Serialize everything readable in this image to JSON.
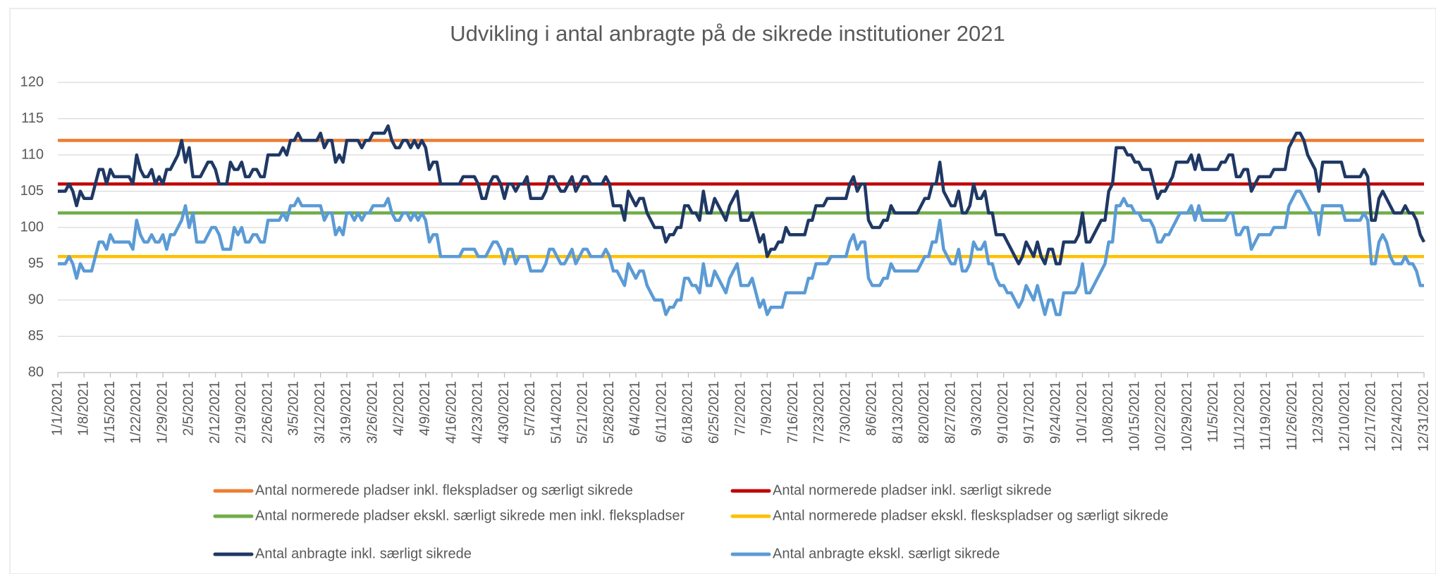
{
  "chart_data": {
    "type": "line",
    "title": "Udvikling i antal anbragte på de sikrede institutioner 2021",
    "categories": [
      "1/1/2021",
      null,
      null,
      null,
      null,
      null,
      null,
      "1/8/2021",
      null,
      null,
      null,
      null,
      null,
      null,
      "1/15/2021",
      null,
      null,
      null,
      null,
      null,
      null,
      "1/22/2021",
      null,
      null,
      null,
      null,
      null,
      null,
      "1/29/2021",
      null,
      null,
      null,
      null,
      null,
      null,
      "2/5/2021",
      null,
      null,
      null,
      null,
      null,
      null,
      "2/12/2021",
      null,
      null,
      null,
      null,
      null,
      null,
      "2/19/2021",
      null,
      null,
      null,
      null,
      null,
      null,
      "2/26/2021",
      null,
      null,
      null,
      null,
      null,
      null,
      "3/5/2021",
      null,
      null,
      null,
      null,
      null,
      null,
      "3/12/2021",
      null,
      null,
      null,
      null,
      null,
      null,
      "3/19/2021",
      null,
      null,
      null,
      null,
      null,
      null,
      "3/26/2021",
      null,
      null,
      null,
      null,
      null,
      null,
      "4/2/2021",
      null,
      null,
      null,
      null,
      null,
      null,
      "4/9/2021",
      null,
      null,
      null,
      null,
      null,
      null,
      "4/16/2021",
      null,
      null,
      null,
      null,
      null,
      null,
      "4/23/2021",
      null,
      null,
      null,
      null,
      null,
      null,
      "4/30/2021",
      null,
      null,
      null,
      null,
      null,
      null,
      "5/7/2021",
      null,
      null,
      null,
      null,
      null,
      null,
      "5/14/2021",
      null,
      null,
      null,
      null,
      null,
      null,
      "5/21/2021",
      null,
      null,
      null,
      null,
      null,
      null,
      "5/28/2021",
      null,
      null,
      null,
      null,
      null,
      null,
      "6/4/2021",
      null,
      null,
      null,
      null,
      null,
      null,
      "6/11/2021",
      null,
      null,
      null,
      null,
      null,
      null,
      "6/18/2021",
      null,
      null,
      null,
      null,
      null,
      null,
      "6/25/2021",
      null,
      null,
      null,
      null,
      null,
      null,
      "7/2/2021",
      null,
      null,
      null,
      null,
      null,
      null,
      "7/9/2021",
      null,
      null,
      null,
      null,
      null,
      null,
      "7/16/2021",
      null,
      null,
      null,
      null,
      null,
      null,
      "7/23/2021",
      null,
      null,
      null,
      null,
      null,
      null,
      "7/30/2021",
      null,
      null,
      null,
      null,
      null,
      null,
      "8/6/2021",
      null,
      null,
      null,
      null,
      null,
      null,
      "8/13/2021",
      null,
      null,
      null,
      null,
      null,
      null,
      "8/20/2021",
      null,
      null,
      null,
      null,
      null,
      null,
      "8/27/2021",
      null,
      null,
      null,
      null,
      null,
      null,
      "9/3/2021",
      null,
      null,
      null,
      null,
      null,
      null,
      "9/10/2021",
      null,
      null,
      null,
      null,
      null,
      null,
      "9/17/2021",
      null,
      null,
      null,
      null,
      null,
      null,
      "9/24/2021",
      null,
      null,
      null,
      null,
      null,
      null,
      "10/1/2021",
      null,
      null,
      null,
      null,
      null,
      null,
      "10/8/2021",
      null,
      null,
      null,
      null,
      null,
      null,
      "10/15/2021",
      null,
      null,
      null,
      null,
      null,
      null,
      "10/22/2021",
      null,
      null,
      null,
      null,
      null,
      null,
      "10/29/2021",
      null,
      null,
      null,
      null,
      null,
      null,
      "11/5/2021",
      null,
      null,
      null,
      null,
      null,
      null,
      "11/12/2021",
      null,
      null,
      null,
      null,
      null,
      null,
      "11/19/2021",
      null,
      null,
      null,
      null,
      null,
      null,
      "11/26/2021",
      null,
      null,
      null,
      null,
      null,
      null,
      "12/3/2021",
      null,
      null,
      null,
      null,
      null,
      null,
      "12/10/2021",
      null,
      null,
      null,
      null,
      null,
      null,
      "12/17/2021",
      null,
      null,
      null,
      null,
      null,
      null,
      "12/24/2021",
      null,
      null,
      null,
      null,
      null,
      null,
      "12/31/2021"
    ],
    "series": [
      {
        "name": "Antal normerede pladser inkl. flekspladser og særligt sikrede",
        "color": "#ed7d31",
        "value": 112
      },
      {
        "name": "Antal normerede pladser inkl. særligt sikrede",
        "color": "#c00000",
        "value": 106
      },
      {
        "name": "Antal normerede pladser ekskl. særligt sikrede men inkl. flekspladser",
        "color": "#70ad47",
        "value": 102
      },
      {
        "name": "Antal normerede pladser ekskl. fleskspladser og særligt sikrede",
        "color": "#ffc000",
        "value": 96
      },
      {
        "name": "Antal anbragte inkl. særligt sikrede",
        "color": "#1f3864",
        "values": [
          105,
          105,
          105,
          106,
          105,
          103,
          105,
          104,
          104,
          104,
          106,
          108,
          108,
          106,
          108,
          107,
          107,
          107,
          107,
          107,
          106,
          110,
          108,
          107,
          107,
          108,
          106,
          107,
          106,
          108,
          108,
          109,
          110,
          112,
          109,
          111,
          107,
          107,
          107,
          108,
          109,
          109,
          108,
          106,
          106,
          106,
          109,
          108,
          108,
          109,
          107,
          107,
          108,
          108,
          107,
          107,
          110,
          110,
          110,
          110,
          111,
          110,
          112,
          112,
          113,
          112,
          112,
          112,
          112,
          112,
          113,
          111,
          112,
          112,
          109,
          110,
          109,
          112,
          112,
          112,
          112,
          111,
          112,
          112,
          113,
          113,
          113,
          113,
          114,
          112,
          111,
          111,
          112,
          112,
          111,
          112,
          111,
          112,
          111,
          108,
          109,
          109,
          106,
          106,
          106,
          106,
          106,
          106,
          107,
          107,
          107,
          107,
          106,
          104,
          104,
          106,
          107,
          107,
          106,
          104,
          106,
          106,
          105,
          106,
          106,
          107,
          104,
          104,
          104,
          104,
          105,
          107,
          107,
          106,
          105,
          105,
          106,
          107,
          105,
          106,
          107,
          107,
          106,
          106,
          106,
          106,
          107,
          106,
          103,
          103,
          103,
          101,
          105,
          104,
          103,
          104,
          104,
          102,
          101,
          100,
          100,
          100,
          98,
          99,
          99,
          100,
          100,
          103,
          103,
          102,
          102,
          101,
          105,
          102,
          102,
          104,
          103,
          102,
          101,
          103,
          104,
          105,
          101,
          101,
          101,
          102,
          100,
          98,
          99,
          96,
          97,
          97,
          98,
          98,
          100,
          99,
          99,
          99,
          99,
          99,
          101,
          101,
          103,
          103,
          103,
          104,
          104,
          104,
          104,
          104,
          104,
          106,
          107,
          105,
          106,
          106,
          101,
          100,
          100,
          100,
          101,
          101,
          103,
          102,
          102,
          102,
          102,
          102,
          102,
          102,
          103,
          104,
          104,
          106,
          106,
          109,
          105,
          104,
          103,
          103,
          105,
          102,
          102,
          103,
          106,
          104,
          104,
          105,
          102,
          102,
          99,
          99,
          99,
          98,
          97,
          96,
          95,
          96,
          98,
          97,
          96,
          98,
          96,
          95,
          97,
          97,
          95,
          95,
          98,
          98,
          98,
          98,
          99,
          102,
          98,
          98,
          99,
          100,
          101,
          101,
          105,
          106,
          111,
          111,
          111,
          110,
          110,
          109,
          109,
          108,
          108,
          108,
          106,
          104,
          105,
          105,
          106,
          107,
          109,
          109,
          109,
          109,
          110,
          108,
          110,
          108,
          108,
          108,
          108,
          108,
          109,
          109,
          110,
          110,
          107,
          107,
          108,
          108,
          105,
          106,
          107,
          107,
          107,
          107,
          108,
          108,
          108,
          108,
          111,
          112,
          113,
          113,
          112,
          110,
          109,
          108,
          105,
          109,
          109,
          109,
          109,
          109,
          109,
          107,
          107,
          107,
          107,
          107,
          108,
          107,
          101,
          101,
          104,
          105,
          104,
          103,
          102,
          102,
          102,
          103,
          102,
          102,
          101,
          99,
          98
        ]
      },
      {
        "name": "Antal anbragte ekskl. særligt sikrede",
        "color": "#5b9bd5",
        "values": [
          95,
          95,
          95,
          96,
          95,
          93,
          95,
          94,
          94,
          94,
          96,
          98,
          98,
          97,
          99,
          98,
          98,
          98,
          98,
          98,
          97,
          101,
          99,
          98,
          98,
          99,
          98,
          98,
          99,
          97,
          99,
          99,
          100,
          101,
          103,
          100,
          102,
          98,
          98,
          98,
          99,
          100,
          100,
          99,
          97,
          97,
          97,
          100,
          99,
          100,
          98,
          98,
          99,
          99,
          98,
          98,
          101,
          101,
          101,
          101,
          102,
          101,
          103,
          103,
          104,
          103,
          103,
          103,
          103,
          103,
          103,
          101,
          102,
          102,
          99,
          100,
          99,
          102,
          102,
          101,
          102,
          101,
          102,
          102,
          103,
          103,
          103,
          103,
          104,
          102,
          101,
          101,
          102,
          102,
          101,
          102,
          101,
          102,
          101,
          98,
          99,
          99,
          96,
          96,
          96,
          96,
          96,
          96,
          97,
          97,
          97,
          97,
          96,
          96,
          96,
          97,
          98,
          98,
          97,
          95,
          97,
          97,
          95,
          96,
          96,
          96,
          94,
          94,
          94,
          94,
          95,
          97,
          97,
          96,
          95,
          95,
          96,
          97,
          95,
          96,
          97,
          97,
          96,
          96,
          96,
          96,
          97,
          96,
          94,
          94,
          93,
          92,
          95,
          94,
          93,
          94,
          94,
          92,
          91,
          90,
          90,
          90,
          88,
          89,
          89,
          90,
          90,
          93,
          93,
          92,
          92,
          91,
          95,
          92,
          92,
          94,
          93,
          92,
          91,
          93,
          94,
          95,
          92,
          92,
          92,
          93,
          91,
          89,
          90,
          88,
          89,
          89,
          89,
          89,
          91,
          91,
          91,
          91,
          91,
          91,
          93,
          93,
          95,
          95,
          95,
          95,
          96,
          96,
          96,
          96,
          96,
          98,
          99,
          97,
          98,
          98,
          93,
          92,
          92,
          92,
          93,
          93,
          95,
          94,
          94,
          94,
          94,
          94,
          94,
          94,
          95,
          96,
          96,
          98,
          98,
          101,
          97,
          96,
          95,
          95,
          97,
          94,
          94,
          95,
          98,
          97,
          97,
          98,
          95,
          95,
          93,
          92,
          92,
          91,
          91,
          90,
          89,
          90,
          92,
          91,
          90,
          92,
          90,
          88,
          90,
          90,
          88,
          88,
          91,
          91,
          91,
          91,
          92,
          95,
          91,
          91,
          92,
          93,
          94,
          95,
          98,
          98,
          103,
          103,
          104,
          103,
          103,
          102,
          102,
          101,
          101,
          101,
          100,
          98,
          98,
          99,
          99,
          100,
          101,
          102,
          102,
          102,
          103,
          101,
          103,
          101,
          101,
          101,
          101,
          101,
          101,
          101,
          102,
          102,
          99,
          99,
          100,
          100,
          97,
          98,
          99,
          99,
          99,
          99,
          100,
          100,
          100,
          100,
          103,
          104,
          105,
          105,
          104,
          103,
          102,
          102,
          99,
          103,
          103,
          103,
          103,
          103,
          103,
          101,
          101,
          101,
          101,
          101,
          102,
          101,
          95,
          95,
          98,
          99,
          98,
          96,
          95,
          95,
          95,
          96,
          95,
          95,
          94,
          92,
          92
        ]
      }
    ],
    "ylim": [
      80,
      120
    ],
    "yticks": [
      80,
      85,
      90,
      95,
      100,
      105,
      110,
      115,
      120
    ],
    "grid": true
  }
}
